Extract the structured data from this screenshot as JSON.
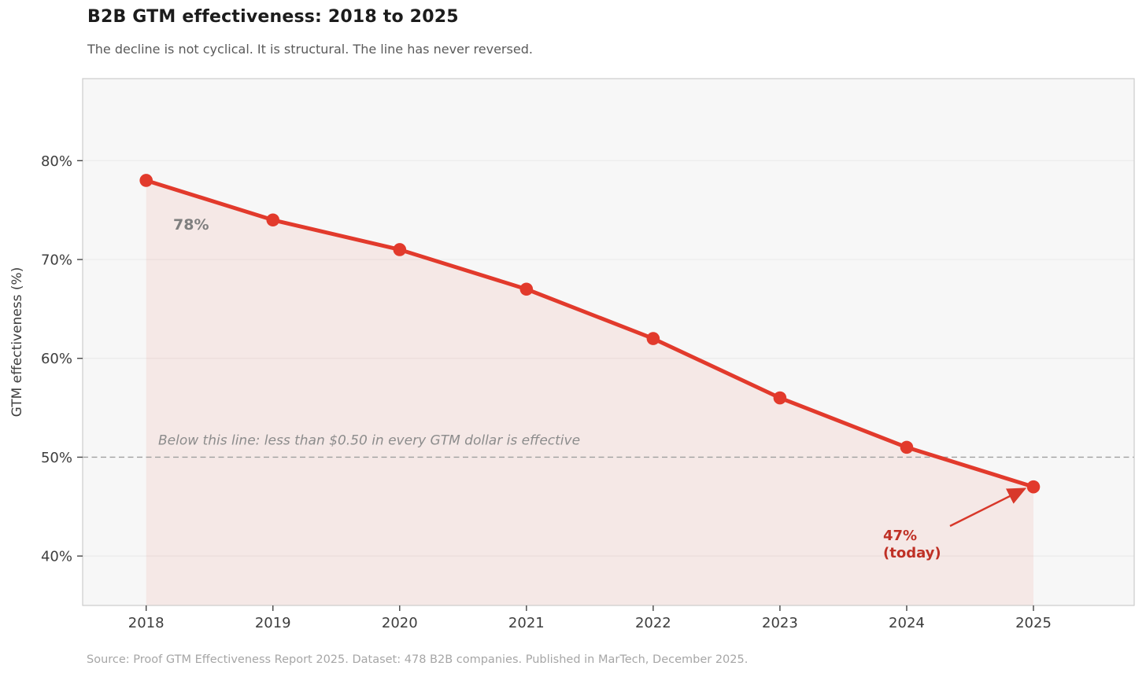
{
  "chart_data": {
    "type": "line",
    "title": "B2B GTM effectiveness: 2018 to 2025",
    "subtitle": "The decline is not cyclical. It is structural. The line has never reversed.",
    "source": "Source: Proof GTM Effectiveness Report 2025. Dataset: 478 B2B companies. Published in MarTech, December 2025.",
    "series_name": "GTM effectiveness",
    "categories": [
      "2018",
      "2019",
      "2020",
      "2021",
      "2022",
      "2023",
      "2024",
      "2025"
    ],
    "values": [
      78,
      74,
      71,
      67,
      62,
      56,
      51,
      47
    ],
    "xlabel": "",
    "ylabel": "GTM effectiveness (%)",
    "ylim": [
      35,
      88.3
    ],
    "yticks": [
      40,
      50,
      60,
      70,
      80
    ],
    "ytick_labels": [
      "40%",
      "50%",
      "60%",
      "70%",
      "80%"
    ],
    "grid": true,
    "legend": "none",
    "threshold": {
      "value": 50,
      "style": "dashed",
      "label": "Below this line: less than $0.50 in every GTM dollar is effective"
    },
    "annotations": {
      "first_point": {
        "text": "78%"
      },
      "last_point": {
        "line1": "47%",
        "line2": "(today)"
      }
    },
    "colors": {
      "line": "#e23a2c",
      "marker": "#e23a2c",
      "area": "#e23a2c",
      "area_opacity": 0.08,
      "threshold_line": "#a0a0a0",
      "threshold_text": "#8c8c8c",
      "first_point_text": "#7f7f7f",
      "last_point_text": "#bf3025",
      "arrow": "#d8382a",
      "plot_background": "#f7f7f7",
      "gridline": "#ebebeb",
      "spine": "#cccccc",
      "tick_text": "#3d3d3d",
      "tick_mark": "#444444"
    }
  }
}
